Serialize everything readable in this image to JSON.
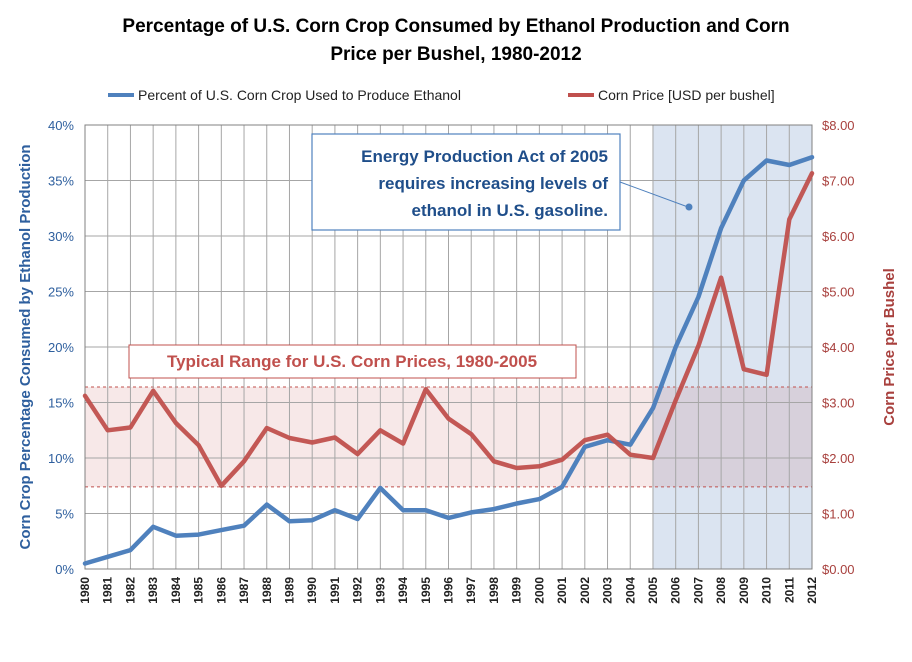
{
  "chart_data": {
    "type": "line",
    "title_line1": "Percentage of U.S. Corn Crop Consumed by Ethanol Production and Corn",
    "title_line2": "Price per Bushel, 1980-2012",
    "categories": [
      "1980",
      "1981",
      "1982",
      "1983",
      "1984",
      "1985",
      "1986",
      "1987",
      "1988",
      "1989",
      "1990",
      "1991",
      "1992",
      "1993",
      "1994",
      "1995",
      "1996",
      "1997",
      "1998",
      "1999",
      "2000",
      "2001",
      "2002",
      "2003",
      "2004",
      "2005",
      "2006",
      "2007",
      "2008",
      "2009",
      "2010",
      "2011",
      "2012"
    ],
    "series": [
      {
        "name": "Percent of U.S. Corn Crop Used to Produce Ethanol",
        "axis": "left",
        "color": "#4f81bd",
        "values": [
          0.5,
          1.1,
          1.7,
          3.8,
          3.0,
          3.1,
          3.5,
          3.9,
          5.8,
          4.3,
          4.4,
          5.3,
          4.5,
          7.3,
          5.3,
          5.3,
          4.6,
          5.1,
          5.4,
          5.9,
          6.3,
          7.4,
          11.0,
          11.6,
          11.2,
          14.5,
          20.0,
          24.5,
          30.7,
          35.0,
          36.8,
          36.4,
          37.1
        ]
      },
      {
        "name": "Corn Price [USD per bushel]",
        "axis": "right",
        "color": "#c0504d",
        "values": [
          3.12,
          2.5,
          2.55,
          3.21,
          2.63,
          2.23,
          1.5,
          1.94,
          2.54,
          2.36,
          2.28,
          2.37,
          2.07,
          2.5,
          2.26,
          3.24,
          2.71,
          2.43,
          1.94,
          1.82,
          1.85,
          1.97,
          2.32,
          2.42,
          2.06,
          2.0,
          3.04,
          4.02,
          5.25,
          3.6,
          3.5,
          6.3,
          7.13
        ]
      }
    ],
    "y_left": {
      "label": "Corn Crop Percentage Consumed by Ethanol Production",
      "lim": [
        0,
        40
      ],
      "ticks": [
        "0%",
        "5%",
        "10%",
        "15%",
        "20%",
        "25%",
        "30%",
        "35%",
        "40%"
      ]
    },
    "y_right": {
      "label": "Corn Price per Bushel",
      "lim": [
        0,
        8
      ],
      "ticks": [
        "$0.00",
        "$1.00",
        "$2.00",
        "$3.00",
        "$4.00",
        "$5.00",
        "$6.00",
        "$7.00",
        "$8.00"
      ]
    },
    "legend": {
      "placement": "top",
      "entries": [
        "Percent of U.S. Corn Crop Used to Produce Ethanol",
        "Corn Price [USD per bushel]"
      ]
    },
    "grid": true,
    "shaded_period": {
      "from": "2005",
      "to": "2012"
    },
    "price_range_band": {
      "label": "Typical Range for U.S. Corn Prices, 1980-2005",
      "low_usd": 1.48,
      "high_usd": 3.28
    },
    "annotation": {
      "line1": "Energy Production  Act of 2005",
      "line2": "requires increasing levels of",
      "line3": "ethanol in U.S. gasoline.",
      "points_to": "2006"
    }
  }
}
